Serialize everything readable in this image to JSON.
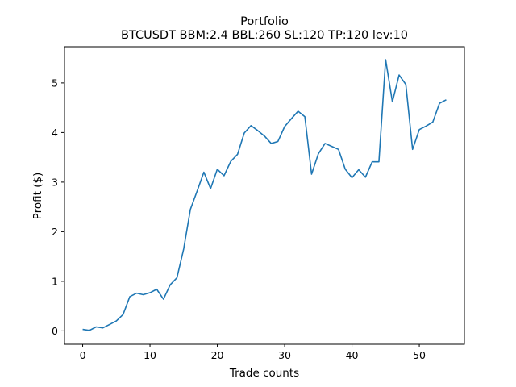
{
  "chart_data": {
    "type": "line",
    "title": "Portfolio",
    "subtitle": "BTCUSDT BBM:2.4 BBL:260 SL:120 TP:120 lev:10",
    "xlabel": "Trade counts",
    "ylabel": "Profit ($)",
    "xlim": [
      -2.7,
      56.7
    ],
    "ylim": [
      -0.27,
      5.73
    ],
    "xticks": [
      0,
      10,
      20,
      30,
      40,
      50
    ],
    "yticks": [
      0,
      1,
      2,
      3,
      4,
      5
    ],
    "grid": false,
    "series_color": "#1f77b4",
    "series": [
      {
        "x": [
          0,
          1,
          2,
          3,
          4,
          5,
          6,
          7,
          8,
          9,
          10,
          11,
          12,
          13,
          14,
          15,
          16,
          17,
          18,
          19,
          20,
          21,
          22,
          23,
          24,
          25,
          26,
          27,
          28,
          29,
          30,
          31,
          32,
          33,
          34,
          35,
          36,
          37,
          38,
          39,
          40,
          41,
          42,
          43,
          44,
          45,
          46,
          47,
          48,
          49,
          50,
          51,
          52,
          53,
          54
        ],
        "values": [
          0.03,
          0.01,
          0.08,
          0.06,
          0.13,
          0.2,
          0.33,
          0.69,
          0.76,
          0.73,
          0.77,
          0.84,
          0.64,
          0.93,
          1.07,
          1.65,
          2.45,
          2.82,
          3.2,
          2.87,
          3.26,
          3.13,
          3.42,
          3.56,
          3.99,
          4.14,
          4.04,
          3.93,
          3.78,
          3.82,
          4.12,
          4.28,
          4.43,
          4.32,
          3.16,
          3.57,
          3.78,
          3.72,
          3.66,
          3.26,
          3.09,
          3.25,
          3.1,
          3.41,
          3.41,
          5.47,
          4.62,
          5.16,
          4.97,
          3.66,
          4.06,
          4.13,
          4.21,
          4.59,
          4.66
        ]
      }
    ]
  }
}
